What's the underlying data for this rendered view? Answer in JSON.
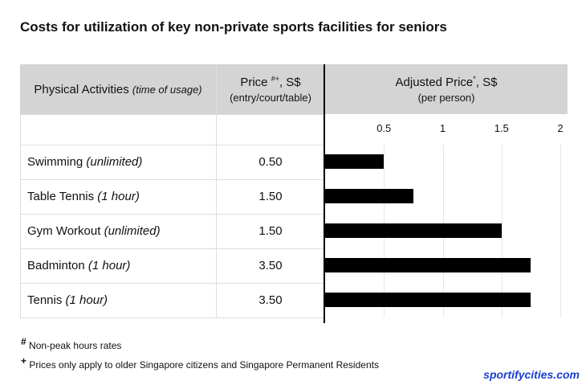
{
  "title": "Costs for utilization of key non-private sports facilities for seniors",
  "headers": {
    "activity": "Physical Activities",
    "activity_note": "(time of usage)",
    "price": "Price",
    "price_sup": "#+",
    "price_unit": ", S$",
    "price_sub": "(entry/court/table)",
    "adjusted": "Adjusted Price",
    "adjusted_sup": "*",
    "adjusted_unit": ", S$",
    "adjusted_sub": "(per person)"
  },
  "rows": [
    {
      "activity": "Swimming",
      "note": "(unlimited)",
      "price": "0.50"
    },
    {
      "activity": "Table Tennis",
      "note": "(1 hour)",
      "price": "1.50"
    },
    {
      "activity": "Gym Workout",
      "note": "(unlimited)",
      "price": "1.50"
    },
    {
      "activity": "Badminton",
      "note": "(1 hour)",
      "price": "3.50"
    },
    {
      "activity": "Tennis",
      "note": "(1 hour)",
      "price": "3.50"
    }
  ],
  "chart_data": {
    "type": "bar",
    "orientation": "horizontal",
    "categories": [
      "Swimming",
      "Table Tennis",
      "Gym Workout",
      "Badminton",
      "Tennis"
    ],
    "values": [
      0.5,
      0.75,
      1.5,
      1.75,
      1.75
    ],
    "xlim": [
      0,
      2
    ],
    "ticks": [
      "0.5",
      "1",
      "1.5",
      "2"
    ],
    "bar_color": "#000000",
    "grid": true
  },
  "footnotes": [
    {
      "mark": "#",
      "text": "Non-peak hours rates"
    },
    {
      "mark": "+",
      "text": "Prices only apply to older Singapore citizens and Singapore Permanent Residents"
    }
  ],
  "brand": "sportifycities.com"
}
